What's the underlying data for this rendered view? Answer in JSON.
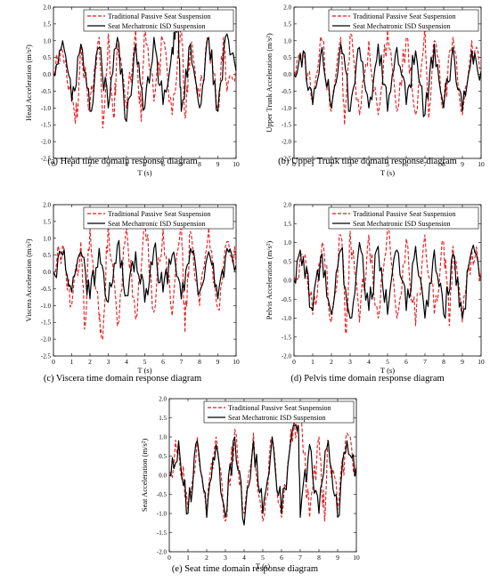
{
  "figure": {
    "legend_traditional": "Traditional Passive Seat Suspension",
    "legend_isd": "Seat Mechatronic ISD Suspension",
    "series_colors": {
      "traditional": "#e8191c",
      "isd": "#000000"
    }
  },
  "chart_data": [
    {
      "id": "a",
      "type": "line",
      "caption": "(a) Head time domain response diagram",
      "xlabel": "T (s)",
      "ylabel": "Head Acceleration (m/s²)",
      "xlim": [
        0,
        10
      ],
      "ylim": [
        -2.5,
        2.0
      ],
      "xticks": [
        0,
        1,
        2,
        3,
        4,
        5,
        6,
        7,
        8,
        9,
        10
      ],
      "yticks": [
        -2.5,
        -2.0,
        -1.5,
        -1.0,
        -0.5,
        0.0,
        0.5,
        1.0,
        1.5,
        2.0
      ],
      "legend": "top-right",
      "series": [
        {
          "name": "Traditional Passive Seat Suspension",
          "style": "dashed",
          "color": "#e8191c",
          "x": [
            0,
            0.5,
            1,
            1.3,
            1.5,
            2,
            2.5,
            2.7,
            3,
            3.3,
            3.5,
            4,
            4.5,
            4.8,
            5,
            5.5,
            6,
            6.5,
            7,
            7.2,
            7.5,
            8,
            8.5,
            9,
            9.3,
            9.5,
            10
          ],
          "values": [
            0.1,
            0.7,
            -0.6,
            -1.3,
            0.8,
            -0.9,
            1.1,
            -1.6,
            1.2,
            -1.3,
            0.9,
            -1.0,
            1.3,
            -1.4,
            1.5,
            -0.8,
            1.0,
            -1.2,
            1.8,
            -1.3,
            0.9,
            -0.7,
            1.0,
            -1.1,
            1.1,
            -0.5,
            0.2
          ]
        },
        {
          "name": "Seat Mechatronic ISD Suspension",
          "style": "solid",
          "color": "#000000",
          "x": [
            0,
            0.5,
            1,
            1.5,
            2,
            2.5,
            3,
            3.5,
            4,
            4.5,
            5,
            5.5,
            6,
            6.5,
            6.8,
            7,
            7.5,
            8,
            8.5,
            9,
            9.5,
            10
          ],
          "values": [
            0.0,
            1.0,
            -0.8,
            0.9,
            -1.1,
            0.8,
            -1.0,
            1.1,
            -1.4,
            0.9,
            -1.0,
            1.1,
            -0.9,
            0.8,
            1.6,
            -1.1,
            0.9,
            -1.0,
            1.1,
            -1.1,
            1.2,
            0.1
          ]
        }
      ]
    },
    {
      "id": "b",
      "type": "line",
      "caption": "(b) Upper Trunk time domain response diagram",
      "xlabel": "T (s)",
      "ylabel": "Upper Trunk Acceleration (m/s²)",
      "xlim": [
        0,
        10
      ],
      "ylim": [
        -2.5,
        2.0
      ],
      "xticks": [
        0,
        1,
        2,
        3,
        4,
        5,
        6,
        7,
        8,
        9,
        10
      ],
      "yticks": [
        -2.5,
        -2.0,
        -1.5,
        -1.0,
        -0.5,
        0.0,
        0.5,
        1.0,
        1.5,
        2.0
      ],
      "legend": "top-right",
      "series": [
        {
          "name": "Traditional Passive Seat Suspension",
          "style": "dashed",
          "color": "#e8191c",
          "x": [
            0,
            0.5,
            1,
            1.5,
            2,
            2.5,
            2.7,
            3,
            3.5,
            4,
            4.5,
            5,
            5.5,
            6,
            6.5,
            7,
            7.2,
            7.5,
            8,
            8.5,
            9,
            9.5,
            10
          ],
          "values": [
            0.1,
            0.7,
            -0.8,
            1.0,
            -1.1,
            1.1,
            -1.5,
            1.2,
            -1.2,
            1.0,
            -1.2,
            1.3,
            -1.1,
            1.1,
            -1.2,
            1.5,
            -1.3,
            1.0,
            -0.9,
            1.1,
            -1.2,
            1.0,
            0.2
          ]
        },
        {
          "name": "Seat Mechatronic ISD Suspension",
          "style": "solid",
          "color": "#000000",
          "x": [
            0,
            0.5,
            1,
            1.5,
            2,
            2.5,
            3,
            3.5,
            4,
            4.5,
            5,
            5.5,
            6,
            6.5,
            7,
            7.5,
            8,
            8.5,
            9,
            9.5,
            10
          ],
          "values": [
            0.0,
            0.7,
            -0.9,
            0.8,
            -1.0,
            0.9,
            -1.1,
            0.8,
            -1.0,
            0.9,
            -1.1,
            0.8,
            -0.9,
            0.7,
            -1.2,
            0.9,
            -1.0,
            0.8,
            -1.1,
            0.7,
            0.1
          ]
        }
      ]
    },
    {
      "id": "c",
      "type": "line",
      "caption": "(c) Viscera time domain response diagram",
      "xlabel": "T (s)",
      "ylabel": "Viscera Acceleration (m/s²)",
      "xlim": [
        0,
        10
      ],
      "ylim": [
        -2.5,
        2.0
      ],
      "xticks": [
        0,
        1,
        2,
        3,
        4,
        5,
        6,
        7,
        8,
        9,
        10
      ],
      "yticks": [
        -2.5,
        -2.0,
        -1.5,
        -1.0,
        -0.5,
        0.0,
        0.5,
        1.0,
        1.5,
        2.0
      ],
      "legend": "top-right",
      "series": [
        {
          "name": "Traditional Passive Seat Suspension",
          "style": "dashed",
          "color": "#e8191c",
          "x": [
            0,
            0.5,
            1,
            1.5,
            1.7,
            2,
            2.5,
            2.7,
            3,
            3.5,
            4,
            4.5,
            5,
            5.5,
            6,
            6.5,
            7,
            7.2,
            7.5,
            8,
            8.5,
            9,
            9.5,
            10
          ],
          "values": [
            0.0,
            0.8,
            -1.0,
            0.9,
            -1.7,
            1.3,
            -1.4,
            -2.0,
            1.5,
            -1.6,
            1.4,
            -1.4,
            1.6,
            -1.2,
            1.3,
            -1.3,
            1.7,
            -1.8,
            1.2,
            -1.0,
            1.3,
            -1.1,
            0.9,
            0.2
          ]
        },
        {
          "name": "Seat Mechatronic ISD Suspension",
          "style": "solid",
          "color": "#000000",
          "x": [
            0,
            0.5,
            1,
            1.5,
            2,
            2.5,
            3,
            3.5,
            4,
            4.5,
            5,
            5.5,
            6,
            6.5,
            7,
            7.5,
            8,
            8.5,
            9,
            9.5,
            10
          ],
          "values": [
            0.0,
            0.5,
            -0.6,
            0.6,
            -0.8,
            0.7,
            -0.9,
            0.8,
            -0.7,
            0.6,
            -0.9,
            0.7,
            -0.6,
            0.5,
            -0.8,
            0.7,
            -0.6,
            0.6,
            -0.8,
            0.7,
            0.2
          ]
        }
      ]
    },
    {
      "id": "d",
      "type": "line",
      "caption": "(d) Pelvis time domain response diagram",
      "xlabel": "T (s)",
      "ylabel": "Pelvis Acceleration (m/s²)",
      "xlim": [
        0,
        10
      ],
      "ylim": [
        -2.0,
        2.0
      ],
      "xticks": [
        0,
        1,
        2,
        3,
        4,
        5,
        6,
        7,
        8,
        9,
        10
      ],
      "yticks": [
        -2.0,
        -1.5,
        -1.0,
        -0.5,
        0.0,
        0.5,
        1.0,
        1.5,
        2.0
      ],
      "legend": "top-right",
      "series": [
        {
          "name": "Traditional Passive Seat Suspension",
          "style": "dashed",
          "color": "#e8191c",
          "x": [
            0,
            0.5,
            1,
            1.5,
            2,
            2.5,
            2.8,
            3,
            3.5,
            4,
            4.5,
            5,
            5.5,
            6,
            6.5,
            7,
            7.5,
            8,
            8.3,
            8.5,
            9,
            9.5,
            10
          ],
          "values": [
            0.1,
            0.6,
            -0.9,
            1.0,
            -1.1,
            1.2,
            -1.4,
            1.3,
            -1.1,
            1.2,
            -1.0,
            1.4,
            -1.0,
            1.1,
            -1.2,
            1.2,
            -0.9,
            1.0,
            -1.2,
            0.9,
            -1.1,
            0.8,
            0.2
          ]
        },
        {
          "name": "Seat Mechatronic ISD Suspension",
          "style": "solid",
          "color": "#000000",
          "x": [
            0,
            0.5,
            1,
            1.5,
            2,
            2.5,
            3,
            3.5,
            4,
            4.5,
            5,
            5.5,
            6,
            6.5,
            7,
            7.5,
            8,
            8.5,
            9,
            9.5,
            10
          ],
          "values": [
            0.0,
            0.6,
            -0.8,
            0.7,
            -0.9,
            0.8,
            -1.0,
            1.0,
            -0.8,
            0.9,
            -0.9,
            0.8,
            -0.8,
            0.9,
            -1.0,
            0.8,
            -0.9,
            0.7,
            -1.0,
            0.8,
            0.1
          ]
        }
      ]
    },
    {
      "id": "e",
      "type": "line",
      "caption": "(e) Seat time domain response diagram",
      "xlabel": "T (s)",
      "ylabel": "Seat Acceleration (m/s²)",
      "xlim": [
        0,
        10
      ],
      "ylim": [
        -2.0,
        2.0
      ],
      "xticks": [
        0,
        1,
        2,
        3,
        4,
        5,
        6,
        7,
        8,
        9,
        10
      ],
      "yticks": [
        -2.0,
        -1.5,
        -1.0,
        -0.5,
        0.0,
        0.5,
        1.0,
        1.5,
        2.0
      ],
      "legend": "top-right",
      "series": [
        {
          "name": "Traditional Passive Seat Suspension",
          "style": "dashed",
          "color": "#e8191c",
          "x": [
            0,
            0.5,
            1,
            1.5,
            2,
            2.5,
            3,
            3.5,
            4,
            4.5,
            5,
            5.5,
            6,
            6.5,
            7,
            7.5,
            8,
            8.3,
            8.5,
            9,
            9.5,
            10
          ],
          "values": [
            0.1,
            0.8,
            -0.9,
            1.0,
            -1.1,
            1.0,
            -1.2,
            1.2,
            -1.0,
            1.1,
            -1.2,
            1.0,
            -1.1,
            1.2,
            1.4,
            -1.1,
            1.0,
            -1.2,
            0.9,
            -0.9,
            1.1,
            0.3
          ]
        },
        {
          "name": "Seat Mechatronic ISD Suspension",
          "style": "solid",
          "color": "#000000",
          "x": [
            0,
            0.5,
            1,
            1.5,
            2,
            2.5,
            3,
            3.5,
            4,
            4.5,
            5,
            5.5,
            6,
            6.5,
            6.9,
            7,
            7.5,
            8,
            8.5,
            9,
            9.5,
            10
          ],
          "values": [
            0.0,
            0.9,
            -1.0,
            0.9,
            -1.1,
            0.8,
            -1.1,
            1.0,
            -1.3,
            0.9,
            -1.0,
            1.0,
            -1.0,
            0.9,
            1.3,
            -1.1,
            0.8,
            -1.0,
            0.9,
            -1.1,
            0.9,
            0.2
          ]
        }
      ]
    }
  ]
}
